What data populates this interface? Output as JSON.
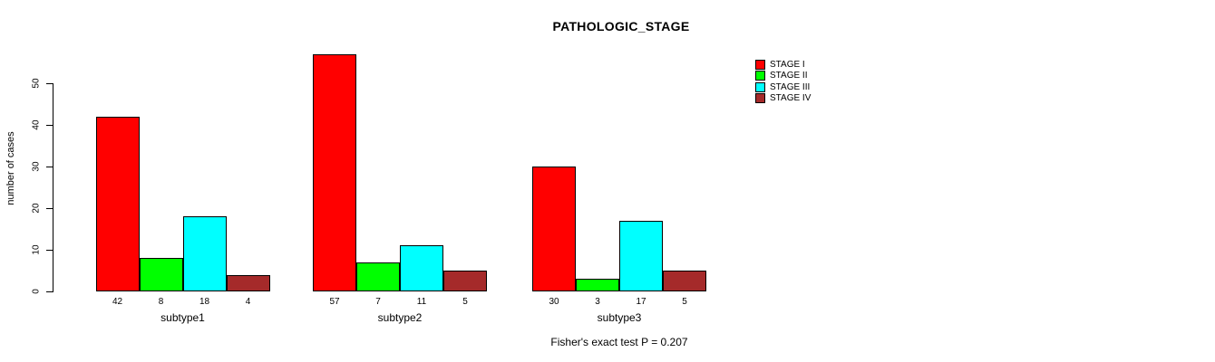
{
  "chart_data": {
    "type": "bar",
    "title": "PATHOLOGIC_STAGE",
    "ylabel": "number of cases",
    "xlabel": "",
    "categories": [
      "subtype1",
      "subtype2",
      "subtype3"
    ],
    "series": [
      {
        "name": "STAGE I",
        "color": "#ff0000",
        "values": [
          42,
          57,
          30
        ]
      },
      {
        "name": "STAGE II",
        "color": "#00ff00",
        "values": [
          8,
          7,
          3
        ]
      },
      {
        "name": "STAGE III",
        "color": "#00ffff",
        "values": [
          18,
          11,
          17
        ]
      },
      {
        "name": "STAGE IV",
        "color": "#a52a2a",
        "values": [
          4,
          5,
          5
        ]
      }
    ],
    "bar_value_labels": [
      [
        42,
        8,
        18,
        4
      ],
      [
        57,
        7,
        11,
        5
      ],
      [
        30,
        3,
        17,
        5
      ]
    ],
    "yticks": [
      0,
      10,
      20,
      30,
      40,
      50
    ],
    "ylim": [
      0,
      57.5
    ],
    "grid": false,
    "legend_position": "right",
    "annotation": "Fisher's exact test P = 0.207"
  }
}
